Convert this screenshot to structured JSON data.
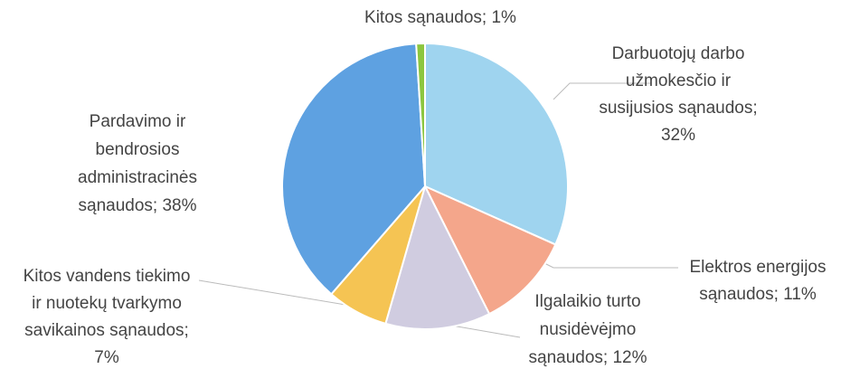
{
  "chart_data": {
    "type": "pie",
    "values": [
      32,
      11,
      12,
      7,
      38,
      1
    ],
    "value_labels": [
      "Darbuotojų darbo užmokesčio ir susijusios sąnaudos; 32%",
      "Elektros energijos sąnaudos; 11%",
      "Ilgalaikio turto nusidėvėjmo sąnaudos; 12%",
      "Kitos vandens tiekimo ir nuotekų tvarkymo savikainos sąnaudos; 7%",
      "Pardavimo ir bendrosios administracinės sąnaudos; 38%",
      "Kitos sąnaudos; 1%"
    ],
    "colors": [
      "#9fd4ef",
      "#f4a68b",
      "#d0cce0",
      "#f5c453",
      "#5ea1e1",
      "#8cc63f"
    ]
  }
}
